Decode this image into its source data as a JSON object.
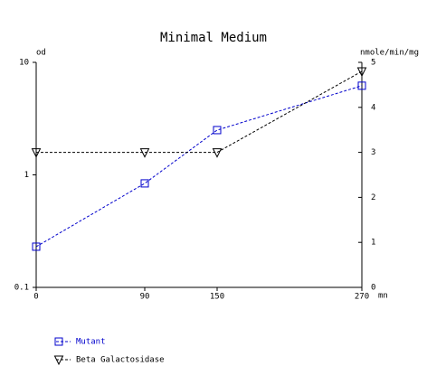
{
  "chart_data": {
    "type": "line",
    "title": "Minimal Medium",
    "ylabel": "od",
    "y2label": "nmole/min/mg",
    "xlabel": "mn",
    "x": [
      0,
      90,
      150,
      270
    ],
    "xlim": [
      0,
      270
    ],
    "xticks": [
      0,
      90,
      150,
      270
    ],
    "ylim": [
      0.1,
      10
    ],
    "yticks": [
      0.1,
      1,
      10
    ],
    "yscale": "log",
    "y2lim": [
      0,
      5
    ],
    "y2ticks": [
      0,
      1,
      2,
      3,
      4,
      5
    ],
    "series": [
      {
        "name": "Mutant",
        "color": "#0000cc",
        "marker": "square",
        "values": [
          0.23,
          0.84,
          2.5,
          6.2
        ]
      },
      {
        "name": "Beta Galactosidase",
        "color": "#000000",
        "marker": "triangle-down",
        "axis": "y2",
        "values": [
          3,
          3,
          3,
          4.8
        ]
      }
    ]
  }
}
